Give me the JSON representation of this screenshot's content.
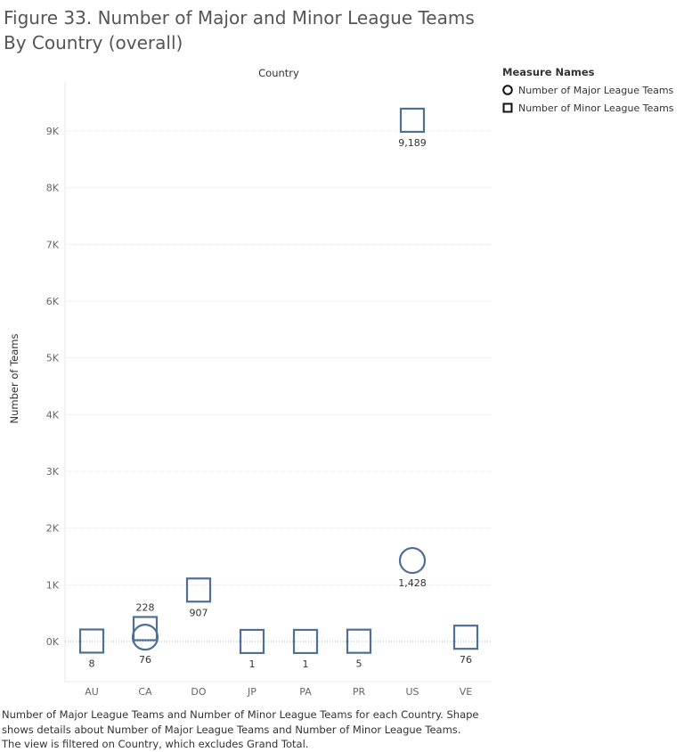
{
  "title": "Figure 33. Number of Major and Minor League Teams By Country (overall)",
  "caption": "Number of Major League Teams and Number of Minor League Teams for each Country.  Shape shows details about Number of Major League Teams and Number of Minor League Teams. The view is filtered on Country, which excludes Grand Total.",
  "legend": {
    "title": "Measure Names",
    "items": [
      {
        "label": "Number of Major League Teams",
        "shape": "circle"
      },
      {
        "label": "Number of Minor League Teams",
        "shape": "square"
      }
    ]
  },
  "colors": {
    "mark": "#4e6f96",
    "grid": "#e6e6e6",
    "zero": "#b3b3b3"
  },
  "chart_data": {
    "type": "scatter",
    "title": "Figure 33. Number of Major and Minor League Teams By Country (overall)",
    "xlabel": "Country",
    "ylabel": "Number of Teams",
    "ylim": [
      -700,
      9800
    ],
    "y_ticks": [
      0,
      1000,
      2000,
      3000,
      4000,
      5000,
      6000,
      7000,
      8000,
      9000
    ],
    "y_tick_labels": [
      "0K",
      "1K",
      "2K",
      "3K",
      "4K",
      "5K",
      "6K",
      "7K",
      "8K",
      "9K"
    ],
    "categories": [
      "AU",
      "CA",
      "DO",
      "JP",
      "PA",
      "PR",
      "US",
      "VE"
    ],
    "grid": true,
    "legend_position": "top-right",
    "series": [
      {
        "name": "Number of Major League Teams",
        "shape": "circle",
        "values": [
          null,
          76,
          null,
          null,
          null,
          null,
          1428,
          null
        ],
        "labels": [
          null,
          "76",
          null,
          null,
          null,
          null,
          "1,428",
          null
        ],
        "label_side": [
          null,
          "below",
          null,
          null,
          null,
          null,
          "below",
          null
        ]
      },
      {
        "name": "Number of Minor League Teams",
        "shape": "square",
        "values": [
          8,
          228,
          907,
          1,
          1,
          5,
          9189,
          76
        ],
        "labels": [
          "8",
          "228",
          "907",
          "1",
          "1",
          "5",
          "9,189",
          "76"
        ],
        "label_side": [
          "below",
          "above",
          "below",
          "below",
          "below",
          "below",
          "below",
          "below"
        ]
      }
    ]
  }
}
